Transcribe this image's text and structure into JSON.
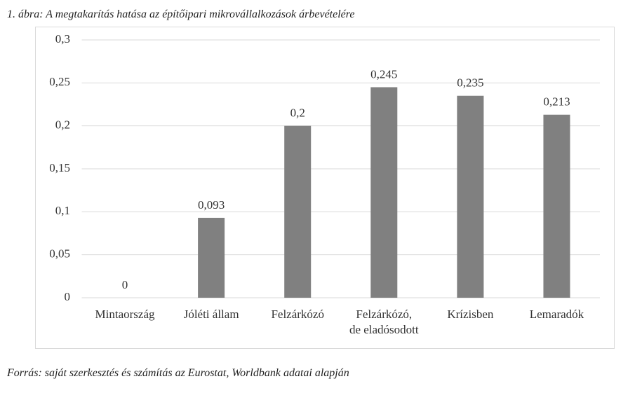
{
  "chart_data": {
    "type": "bar",
    "title": "1. ábra: A megtakarítás hatása az építőipari mikrovállalkozások árbevételére",
    "source": "Forrás: saját szerkesztés és számítás az Eurostat, Worldbank adatai alapján",
    "categories": [
      "Mintaország",
      "Jóléti állam",
      "Felzárkózó",
      "Felzárkózó,\nde eladósodott",
      "Krízisben",
      "Lemaradók"
    ],
    "values": [
      0,
      0.093,
      0.2,
      0.245,
      0.235,
      0.213
    ],
    "value_labels": [
      "0",
      "0,093",
      "0,2",
      "0,245",
      "0,235",
      "0,213"
    ],
    "color": "#808080",
    "ylim": [
      0,
      0.3
    ],
    "yticks": [
      0,
      {
        "value": 0.05,
        "label": "0,05"
      },
      {
        "value": 0.1,
        "label": "0,1"
      },
      {
        "value": 0.15,
        "label": "0,15"
      },
      {
        "value": 0.2,
        "label": "0,2"
      },
      {
        "value": 0.25,
        "label": "0,25"
      },
      {
        "value": 0.3,
        "label": "0,3"
      }
    ],
    "grid": true
  }
}
